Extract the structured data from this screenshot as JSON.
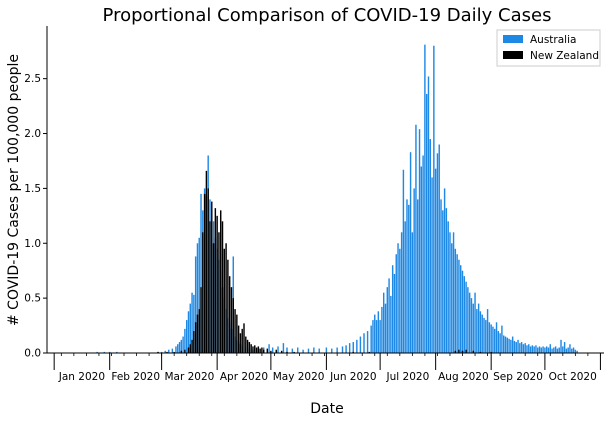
{
  "chart_data": {
    "type": "bar",
    "title": "Proportional Comparison of COVID-19 Daily Cases",
    "xlabel": "Date",
    "ylabel": "# COVID-19 Cases per 100,000 people",
    "x_range": [
      "2019-12-28",
      "2020-11-03"
    ],
    "ylim": [
      0,
      2.98
    ],
    "yticks": [
      0.0,
      0.5,
      1.0,
      1.5,
      2.0,
      2.5
    ],
    "ytick_labels": [
      "0.0",
      "0.5",
      "1.0",
      "1.5",
      "2.0",
      "2.5"
    ],
    "xtick_dates": [
      "2020-01-01",
      "2020-02-01",
      "2020-03-01",
      "2020-04-01",
      "2020-05-01",
      "2020-06-01",
      "2020-07-01",
      "2020-08-01",
      "2020-09-01",
      "2020-10-01",
      "2020-11-01"
    ],
    "xtick_labels": [
      "Jan 2020",
      "Feb 2020",
      "Mar 2020",
      "Apr 2020",
      "May 2020",
      "Jun 2020",
      "Jul 2020",
      "Aug 2020",
      "Sep 2020",
      "Oct 2020",
      ""
    ],
    "grid": false,
    "legend_position": "top-right",
    "series": [
      {
        "name": "Australia",
        "color": "#1e88e5",
        "points": [
          [
            "2020-01-25",
            0.01
          ],
          [
            "2020-01-29",
            0.01
          ],
          [
            "2020-02-01",
            0.01
          ],
          [
            "2020-02-05",
            0.01
          ],
          [
            "2020-02-10",
            0.0
          ],
          [
            "2020-02-20",
            0.0
          ],
          [
            "2020-02-28",
            0.01
          ],
          [
            "2020-03-01",
            0.01
          ],
          [
            "2020-03-03",
            0.02
          ],
          [
            "2020-03-05",
            0.03
          ],
          [
            "2020-03-07",
            0.04
          ],
          [
            "2020-03-09",
            0.06
          ],
          [
            "2020-03-10",
            0.08
          ],
          [
            "2020-03-11",
            0.1
          ],
          [
            "2020-03-12",
            0.12
          ],
          [
            "2020-03-13",
            0.15
          ],
          [
            "2020-03-14",
            0.22
          ],
          [
            "2020-03-15",
            0.3
          ],
          [
            "2020-03-16",
            0.38
          ],
          [
            "2020-03-17",
            0.45
          ],
          [
            "2020-03-18",
            0.55
          ],
          [
            "2020-03-19",
            0.53
          ],
          [
            "2020-03-20",
            0.88
          ],
          [
            "2020-03-21",
            1.0
          ],
          [
            "2020-03-22",
            1.05
          ],
          [
            "2020-03-23",
            1.45
          ],
          [
            "2020-03-24",
            1.3
          ],
          [
            "2020-03-25",
            1.5
          ],
          [
            "2020-03-26",
            1.43
          ],
          [
            "2020-03-27",
            1.8
          ],
          [
            "2020-03-28",
            1.4
          ],
          [
            "2020-03-29",
            1.3
          ],
          [
            "2020-03-30",
            1.2
          ],
          [
            "2020-03-31",
            1.05
          ],
          [
            "2020-04-01",
            0.95
          ],
          [
            "2020-04-02",
            0.85
          ],
          [
            "2020-04-03",
            0.75
          ],
          [
            "2020-04-04",
            0.6
          ],
          [
            "2020-04-05",
            0.5
          ],
          [
            "2020-04-06",
            0.4
          ],
          [
            "2020-04-07",
            0.32
          ],
          [
            "2020-04-08",
            0.28
          ],
          [
            "2020-04-09",
            0.22
          ],
          [
            "2020-04-10",
            0.88
          ],
          [
            "2020-04-11",
            0.15
          ],
          [
            "2020-04-12",
            0.12
          ],
          [
            "2020-04-13",
            0.1
          ],
          [
            "2020-04-14",
            0.08
          ],
          [
            "2020-04-15",
            0.06
          ],
          [
            "2020-04-17",
            0.05
          ],
          [
            "2020-04-19",
            0.04
          ],
          [
            "2020-04-21",
            0.03
          ],
          [
            "2020-04-24",
            0.04
          ],
          [
            "2020-04-27",
            0.05
          ],
          [
            "2020-04-30",
            0.08
          ],
          [
            "2020-05-02",
            0.05
          ],
          [
            "2020-05-05",
            0.06
          ],
          [
            "2020-05-08",
            0.09
          ],
          [
            "2020-05-10",
            0.05
          ],
          [
            "2020-05-13",
            0.04
          ],
          [
            "2020-05-16",
            0.05
          ],
          [
            "2020-05-19",
            0.03
          ],
          [
            "2020-05-22",
            0.04
          ],
          [
            "2020-05-25",
            0.05
          ],
          [
            "2020-05-28",
            0.04
          ],
          [
            "2020-06-01",
            0.05
          ],
          [
            "2020-06-04",
            0.04
          ],
          [
            "2020-06-07",
            0.05
          ],
          [
            "2020-06-10",
            0.06
          ],
          [
            "2020-06-12",
            0.07
          ],
          [
            "2020-06-14",
            0.09
          ],
          [
            "2020-06-16",
            0.1
          ],
          [
            "2020-06-18",
            0.12
          ],
          [
            "2020-06-20",
            0.15
          ],
          [
            "2020-06-22",
            0.18
          ],
          [
            "2020-06-24",
            0.2
          ],
          [
            "2020-06-26",
            0.25
          ],
          [
            "2020-06-27",
            0.3
          ],
          [
            "2020-06-28",
            0.35
          ],
          [
            "2020-06-29",
            0.3
          ],
          [
            "2020-06-30",
            0.38
          ],
          [
            "2020-07-01",
            0.3
          ],
          [
            "2020-07-02",
            0.42
          ],
          [
            "2020-07-03",
            0.55
          ],
          [
            "2020-07-04",
            0.45
          ],
          [
            "2020-07-05",
            0.6
          ],
          [
            "2020-07-06",
            0.68
          ],
          [
            "2020-07-07",
            0.52
          ],
          [
            "2020-07-08",
            0.8
          ],
          [
            "2020-07-09",
            0.72
          ],
          [
            "2020-07-10",
            0.9
          ],
          [
            "2020-07-11",
            1.0
          ],
          [
            "2020-07-12",
            0.95
          ],
          [
            "2020-07-13",
            1.1
          ],
          [
            "2020-07-14",
            1.67
          ],
          [
            "2020-07-15",
            1.2
          ],
          [
            "2020-07-16",
            1.4
          ],
          [
            "2020-07-17",
            1.35
          ],
          [
            "2020-07-18",
            1.83
          ],
          [
            "2020-07-19",
            1.1
          ],
          [
            "2020-07-20",
            1.5
          ],
          [
            "2020-07-21",
            2.08
          ],
          [
            "2020-07-22",
            1.4
          ],
          [
            "2020-07-23",
            2.04
          ],
          [
            "2020-07-24",
            1.7
          ],
          [
            "2020-07-25",
            1.8
          ],
          [
            "2020-07-26",
            2.81
          ],
          [
            "2020-07-27",
            2.36
          ],
          [
            "2020-07-28",
            2.52
          ],
          [
            "2020-07-29",
            1.95
          ],
          [
            "2020-07-30",
            1.6
          ],
          [
            "2020-07-31",
            2.8
          ],
          [
            "2020-08-01",
            1.68
          ],
          [
            "2020-08-02",
            1.82
          ],
          [
            "2020-08-03",
            1.9
          ],
          [
            "2020-08-04",
            1.4
          ],
          [
            "2020-08-05",
            1.3
          ],
          [
            "2020-08-06",
            1.5
          ],
          [
            "2020-08-07",
            1.32
          ],
          [
            "2020-08-08",
            1.2
          ],
          [
            "2020-08-09",
            1.1
          ],
          [
            "2020-08-10",
            1.0
          ],
          [
            "2020-08-11",
            1.1
          ],
          [
            "2020-08-12",
            0.95
          ],
          [
            "2020-08-13",
            0.9
          ],
          [
            "2020-08-14",
            0.85
          ],
          [
            "2020-08-15",
            0.8
          ],
          [
            "2020-08-16",
            0.75
          ],
          [
            "2020-08-17",
            0.7
          ],
          [
            "2020-08-18",
            0.65
          ],
          [
            "2020-08-19",
            0.6
          ],
          [
            "2020-08-20",
            0.55
          ],
          [
            "2020-08-21",
            0.5
          ],
          [
            "2020-08-22",
            0.45
          ],
          [
            "2020-08-23",
            0.55
          ],
          [
            "2020-08-24",
            0.4
          ],
          [
            "2020-08-25",
            0.45
          ],
          [
            "2020-08-26",
            0.38
          ],
          [
            "2020-08-27",
            0.35
          ],
          [
            "2020-08-28",
            0.32
          ],
          [
            "2020-08-29",
            0.3
          ],
          [
            "2020-08-30",
            0.4
          ],
          [
            "2020-08-31",
            0.28
          ],
          [
            "2020-09-01",
            0.26
          ],
          [
            "2020-09-02",
            0.24
          ],
          [
            "2020-09-03",
            0.22
          ],
          [
            "2020-09-04",
            0.28
          ],
          [
            "2020-09-05",
            0.2
          ],
          [
            "2020-09-06",
            0.18
          ],
          [
            "2020-09-07",
            0.25
          ],
          [
            "2020-09-08",
            0.16
          ],
          [
            "2020-09-09",
            0.15
          ],
          [
            "2020-09-10",
            0.14
          ],
          [
            "2020-09-11",
            0.13
          ],
          [
            "2020-09-12",
            0.12
          ],
          [
            "2020-09-13",
            0.15
          ],
          [
            "2020-09-14",
            0.11
          ],
          [
            "2020-09-15",
            0.1
          ],
          [
            "2020-09-16",
            0.12
          ],
          [
            "2020-09-17",
            0.09
          ],
          [
            "2020-09-18",
            0.1
          ],
          [
            "2020-09-19",
            0.08
          ],
          [
            "2020-09-20",
            0.09
          ],
          [
            "2020-09-21",
            0.07
          ],
          [
            "2020-09-22",
            0.08
          ],
          [
            "2020-09-23",
            0.06
          ],
          [
            "2020-09-24",
            0.07
          ],
          [
            "2020-09-25",
            0.06
          ],
          [
            "2020-09-26",
            0.07
          ],
          [
            "2020-09-27",
            0.05
          ],
          [
            "2020-09-28",
            0.06
          ],
          [
            "2020-09-29",
            0.05
          ],
          [
            "2020-09-30",
            0.06
          ],
          [
            "2020-10-01",
            0.05
          ],
          [
            "2020-10-02",
            0.06
          ],
          [
            "2020-10-03",
            0.05
          ],
          [
            "2020-10-04",
            0.08
          ],
          [
            "2020-10-05",
            0.04
          ],
          [
            "2020-10-06",
            0.05
          ],
          [
            "2020-10-07",
            0.06
          ],
          [
            "2020-10-08",
            0.04
          ],
          [
            "2020-10-09",
            0.05
          ],
          [
            "2020-10-10",
            0.12
          ],
          [
            "2020-10-11",
            0.06
          ],
          [
            "2020-10-12",
            0.1
          ],
          [
            "2020-10-13",
            0.04
          ],
          [
            "2020-10-14",
            0.05
          ],
          [
            "2020-10-15",
            0.08
          ],
          [
            "2020-10-16",
            0.04
          ],
          [
            "2020-10-17",
            0.05
          ],
          [
            "2020-10-18",
            0.03
          ],
          [
            "2020-10-19",
            0.02
          ]
        ]
      },
      {
        "name": "New Zealand",
        "color": "#000000",
        "points": [
          [
            "2020-02-28",
            0.01
          ],
          [
            "2020-03-04",
            0.01
          ],
          [
            "2020-03-08",
            0.01
          ],
          [
            "2020-03-12",
            0.02
          ],
          [
            "2020-03-14",
            0.03
          ],
          [
            "2020-03-16",
            0.05
          ],
          [
            "2020-03-17",
            0.08
          ],
          [
            "2020-03-18",
            0.12
          ],
          [
            "2020-03-19",
            0.2
          ],
          [
            "2020-03-20",
            0.28
          ],
          [
            "2020-03-21",
            0.35
          ],
          [
            "2020-03-22",
            0.4
          ],
          [
            "2020-03-23",
            0.6
          ],
          [
            "2020-03-24",
            1.1
          ],
          [
            "2020-03-25",
            1.45
          ],
          [
            "2020-03-26",
            1.66
          ],
          [
            "2020-03-27",
            1.5
          ],
          [
            "2020-03-28",
            1.2
          ],
          [
            "2020-03-29",
            1.38
          ],
          [
            "2020-03-30",
            1.0
          ],
          [
            "2020-03-31",
            1.32
          ],
          [
            "2020-04-01",
            1.25
          ],
          [
            "2020-04-02",
            1.1
          ],
          [
            "2020-04-03",
            1.3
          ],
          [
            "2020-04-04",
            1.2
          ],
          [
            "2020-04-05",
            0.95
          ],
          [
            "2020-04-06",
            1.0
          ],
          [
            "2020-04-07",
            0.85
          ],
          [
            "2020-04-08",
            0.7
          ],
          [
            "2020-04-09",
            0.6
          ],
          [
            "2020-04-10",
            0.5
          ],
          [
            "2020-04-11",
            0.4
          ],
          [
            "2020-04-12",
            0.35
          ],
          [
            "2020-04-13",
            0.25
          ],
          [
            "2020-04-14",
            0.18
          ],
          [
            "2020-04-15",
            0.22
          ],
          [
            "2020-04-16",
            0.27
          ],
          [
            "2020-04-17",
            0.15
          ],
          [
            "2020-04-18",
            0.12
          ],
          [
            "2020-04-19",
            0.1
          ],
          [
            "2020-04-20",
            0.08
          ],
          [
            "2020-04-21",
            0.06
          ],
          [
            "2020-04-22",
            0.07
          ],
          [
            "2020-04-23",
            0.05
          ],
          [
            "2020-04-24",
            0.06
          ],
          [
            "2020-04-25",
            0.04
          ],
          [
            "2020-04-26",
            0.05
          ],
          [
            "2020-04-27",
            0.03
          ],
          [
            "2020-04-29",
            0.04
          ],
          [
            "2020-05-01",
            0.02
          ],
          [
            "2020-05-04",
            0.03
          ],
          [
            "2020-05-07",
            0.02
          ],
          [
            "2020-05-10",
            0.01
          ],
          [
            "2020-05-14",
            0.01
          ],
          [
            "2020-06-16",
            0.01
          ],
          [
            "2020-06-25",
            0.01
          ],
          [
            "2020-08-12",
            0.02
          ],
          [
            "2020-08-14",
            0.03
          ],
          [
            "2020-08-16",
            0.02
          ],
          [
            "2020-08-18",
            0.03
          ],
          [
            "2020-08-22",
            0.02
          ],
          [
            "2020-08-26",
            0.01
          ],
          [
            "2020-09-01",
            0.01
          ]
        ]
      }
    ]
  }
}
